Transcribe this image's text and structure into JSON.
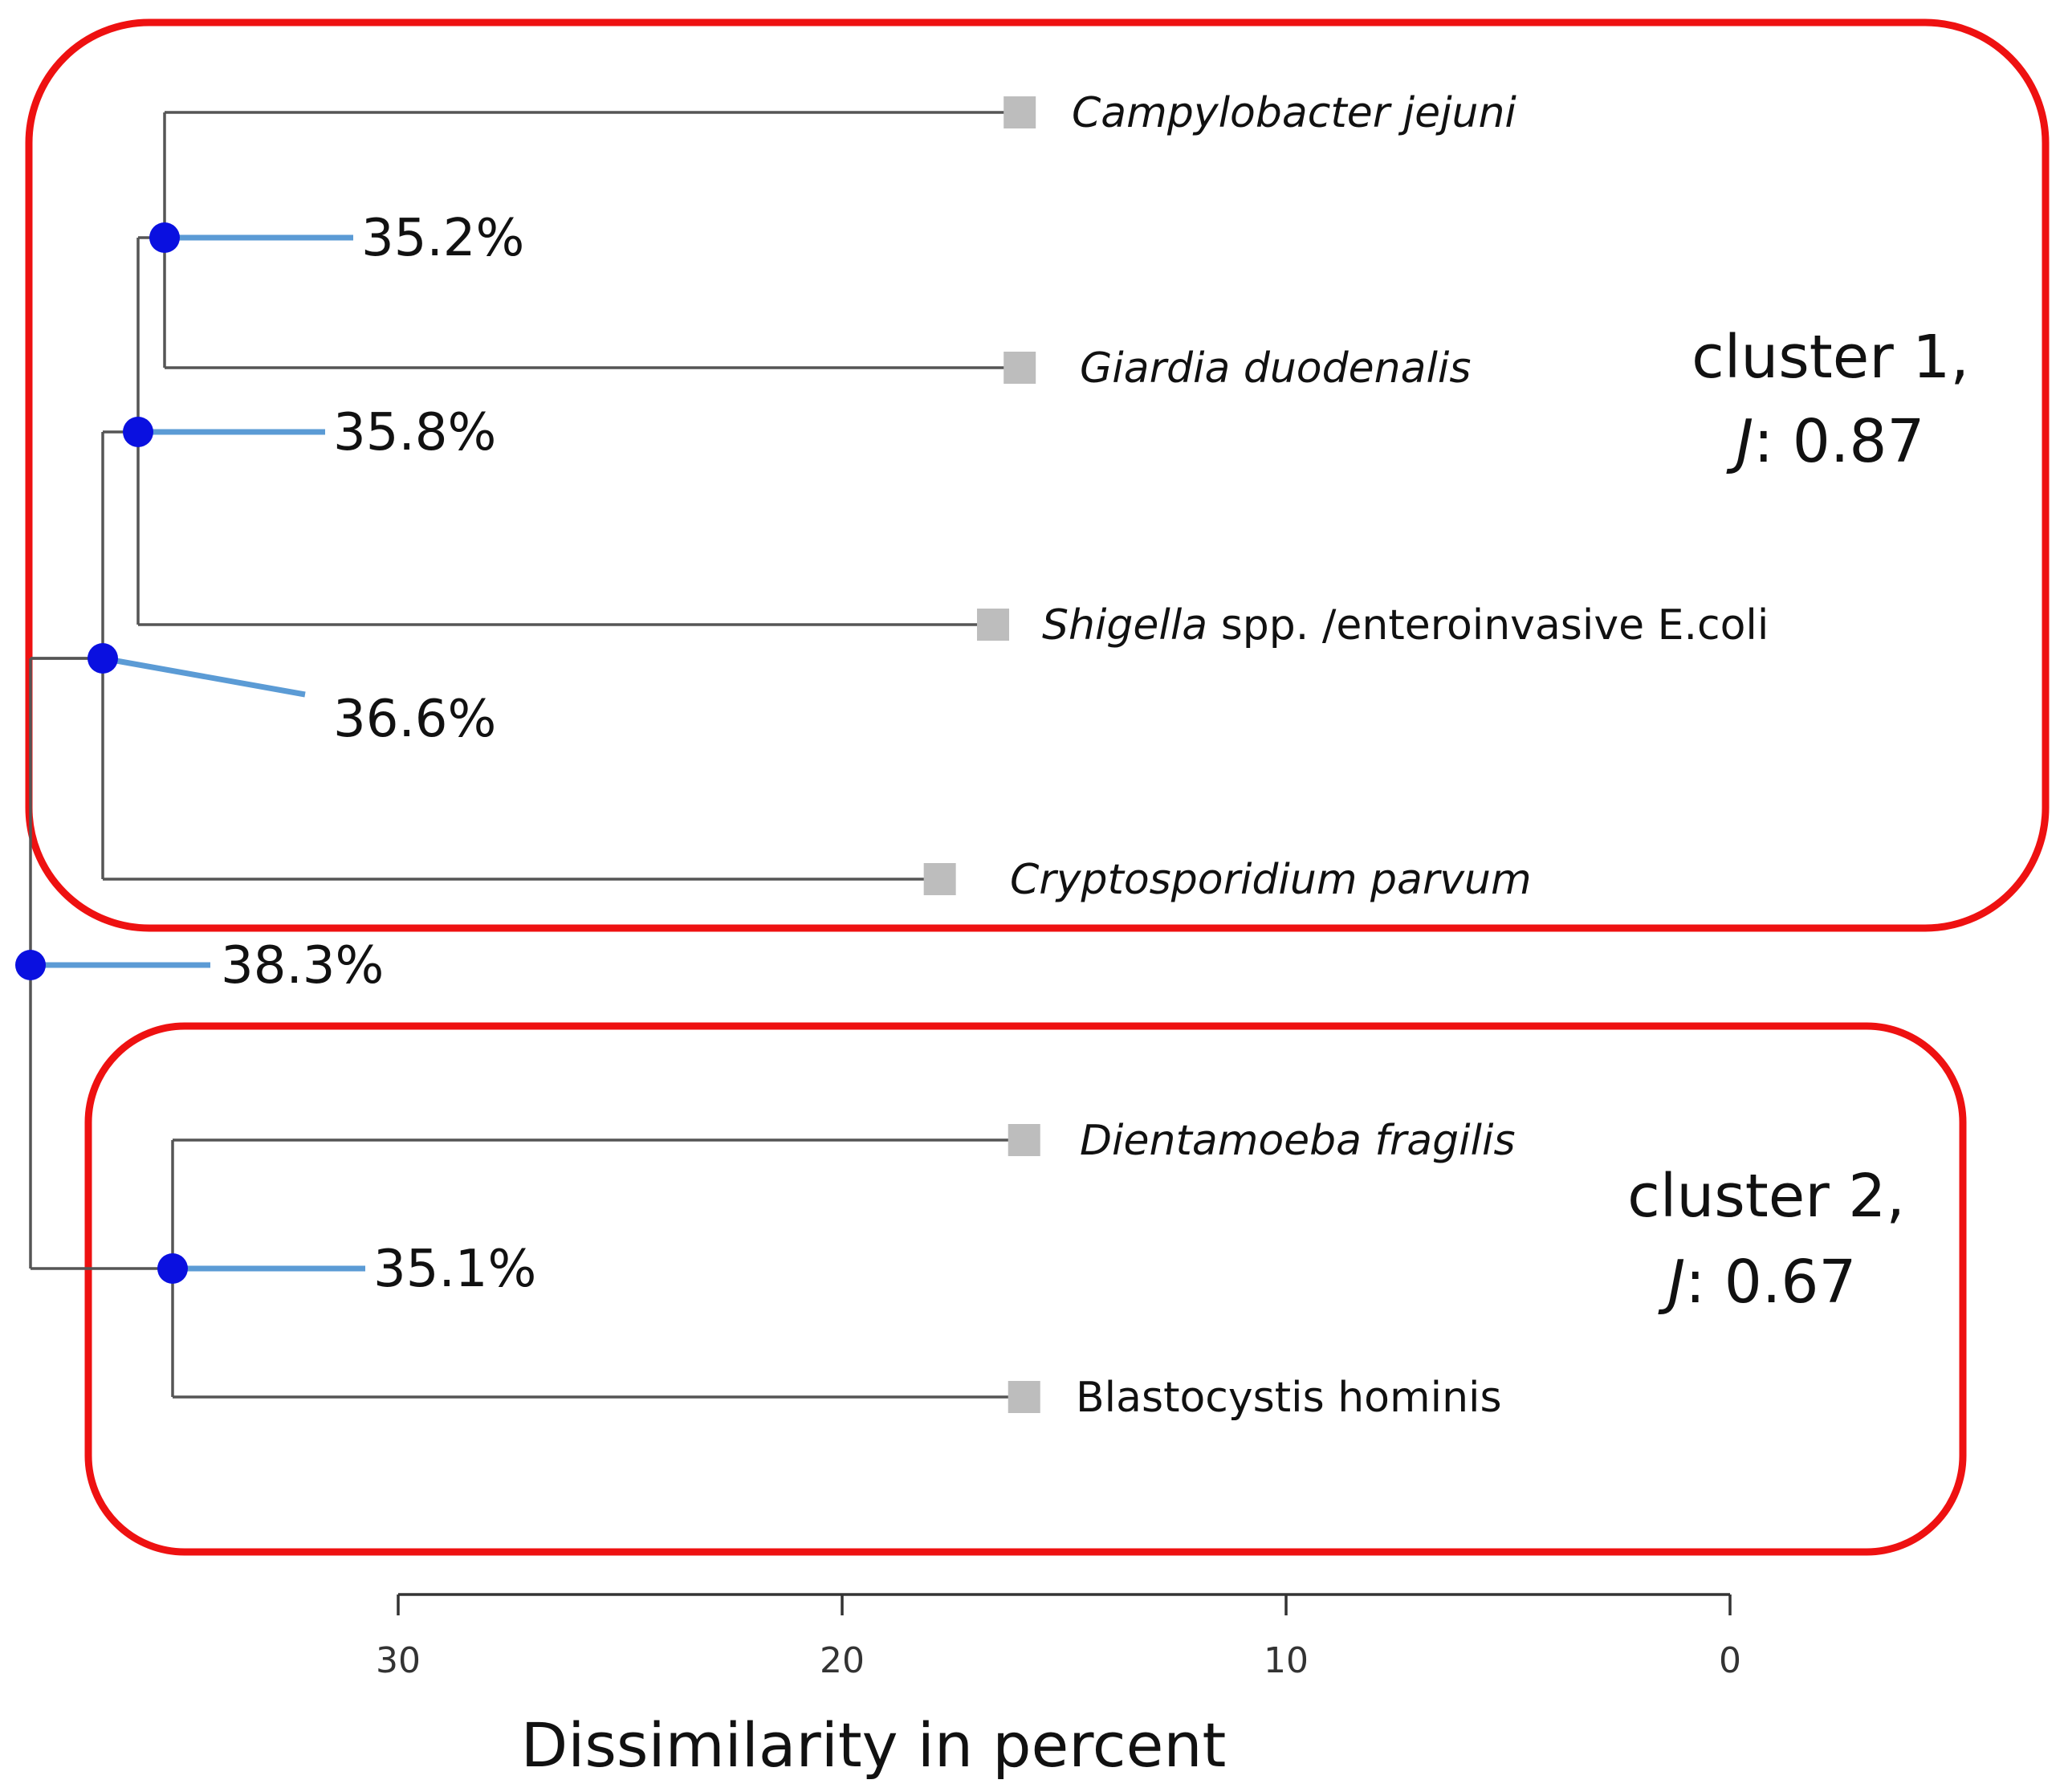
{
  "chart_data": {
    "type": "dendrogram",
    "colors": {
      "cluster_box": "#ee1111",
      "node_dot": "#0a10e0",
      "leader_line": "#5b9bd5",
      "branch": "#555555",
      "leaf_marker": "#bdbdbd"
    },
    "xaxis": {
      "label": "Dissimilarity in percent",
      "range": [
        30,
        0
      ],
      "ticks": [
        {
          "value": 30,
          "label": "30"
        },
        {
          "value": 20,
          "label": "20"
        },
        {
          "value": 10,
          "label": "10"
        },
        {
          "value": 0,
          "label": "0"
        }
      ]
    },
    "leaves": [
      {
        "id": "campylobacter",
        "italic": "Campylobacter jejuni",
        "rest": "",
        "height": 16
      },
      {
        "id": "giardia",
        "italic": "Giardia duodenalis",
        "rest": "",
        "height": 16
      },
      {
        "id": "shigella",
        "italic": "Shigella",
        "rest": " spp. /enteroinvasive E.coli",
        "height": 16.6
      },
      {
        "id": "cryptosporidium",
        "italic": "Cryptosporidium parvum",
        "rest": "",
        "height": 17.8
      },
      {
        "id": "dientamoeba",
        "italic": "Dientamoeba fragilis",
        "rest": "",
        "height": 15.9
      },
      {
        "id": "blastocystis",
        "italic": "",
        "rest": "Blastocystis hominis",
        "height": 15.9
      }
    ],
    "merges": [
      {
        "id": "n1",
        "children": [
          "campylobacter",
          "giardia"
        ],
        "bootstrap": "35.2%",
        "height": 35.2
      },
      {
        "id": "n2",
        "children": [
          "n1",
          "shigella"
        ],
        "bootstrap": "35.8%",
        "height": 35.8
      },
      {
        "id": "n3",
        "children": [
          "n2",
          "cryptosporidium"
        ],
        "bootstrap": "36.6%",
        "height": 36.6
      },
      {
        "id": "n5",
        "children": [
          "dientamoeba",
          "blastocystis"
        ],
        "bootstrap": "35.1%",
        "height": 35.1
      },
      {
        "id": "root",
        "children": [
          "n3",
          "n5"
        ],
        "bootstrap": "38.3%",
        "height": 38.3
      }
    ],
    "clusters": [
      {
        "name": "cluster 1,",
        "stat_italic": "J",
        "stat_rest": ": 0.87",
        "members": [
          "campylobacter",
          "giardia",
          "shigella",
          "cryptosporidium"
        ]
      },
      {
        "name": "cluster 2,",
        "stat_italic": "J",
        "stat_rest": ": 0.67",
        "members": [
          "dientamoeba",
          "blastocystis"
        ]
      }
    ]
  }
}
